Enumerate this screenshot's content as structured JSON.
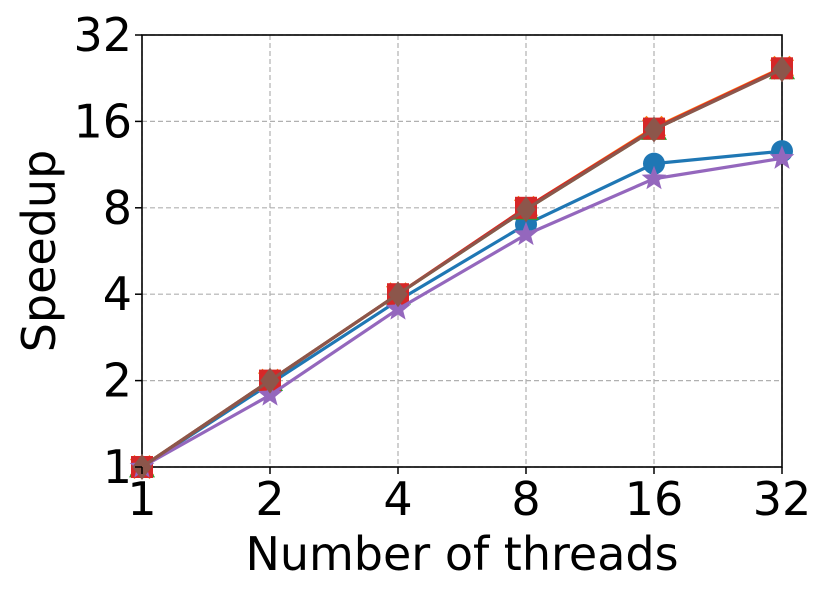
{
  "chart_data": {
    "type": "line",
    "xlabel": "Number of threads",
    "ylabel": "Speedup",
    "x": [
      1,
      2,
      4,
      8,
      16,
      32
    ],
    "x_tick_labels": [
      "1",
      "2",
      "4",
      "8",
      "16",
      "32"
    ],
    "y_ticks": [
      1,
      2,
      4,
      8,
      16,
      32
    ],
    "y_tick_labels": [
      "1",
      "2",
      "4",
      "8",
      "16",
      "32"
    ],
    "xlim": [
      1,
      32
    ],
    "ylim": [
      1,
      32
    ],
    "xscale": "log2",
    "yscale": "log2",
    "grid": true,
    "series": [
      {
        "color": "#1f77b4",
        "marker": "circle",
        "values": [
          1.0,
          1.95,
          3.8,
          7.0,
          11.4,
          12.6
        ]
      },
      {
        "color": "#ff7f0e",
        "marker": "x",
        "values": [
          1.0,
          2.0,
          4.0,
          8.0,
          15.2,
          24.6
        ]
      },
      {
        "color": "#2ca02c",
        "marker": "triangle",
        "values": [
          1.0,
          2.0,
          4.0,
          7.9,
          15.0,
          24.4
        ]
      },
      {
        "color": "#d62728",
        "marker": "square",
        "values": [
          1.0,
          2.0,
          4.0,
          8.0,
          15.1,
          24.5
        ]
      },
      {
        "color": "#9467bd",
        "marker": "star",
        "values": [
          1.0,
          1.78,
          3.55,
          6.45,
          10.1,
          11.9
        ]
      },
      {
        "color": "#8c564b",
        "marker": "diamond",
        "values": [
          1.0,
          2.0,
          4.0,
          7.9,
          15.0,
          24.3
        ]
      }
    ]
  }
}
